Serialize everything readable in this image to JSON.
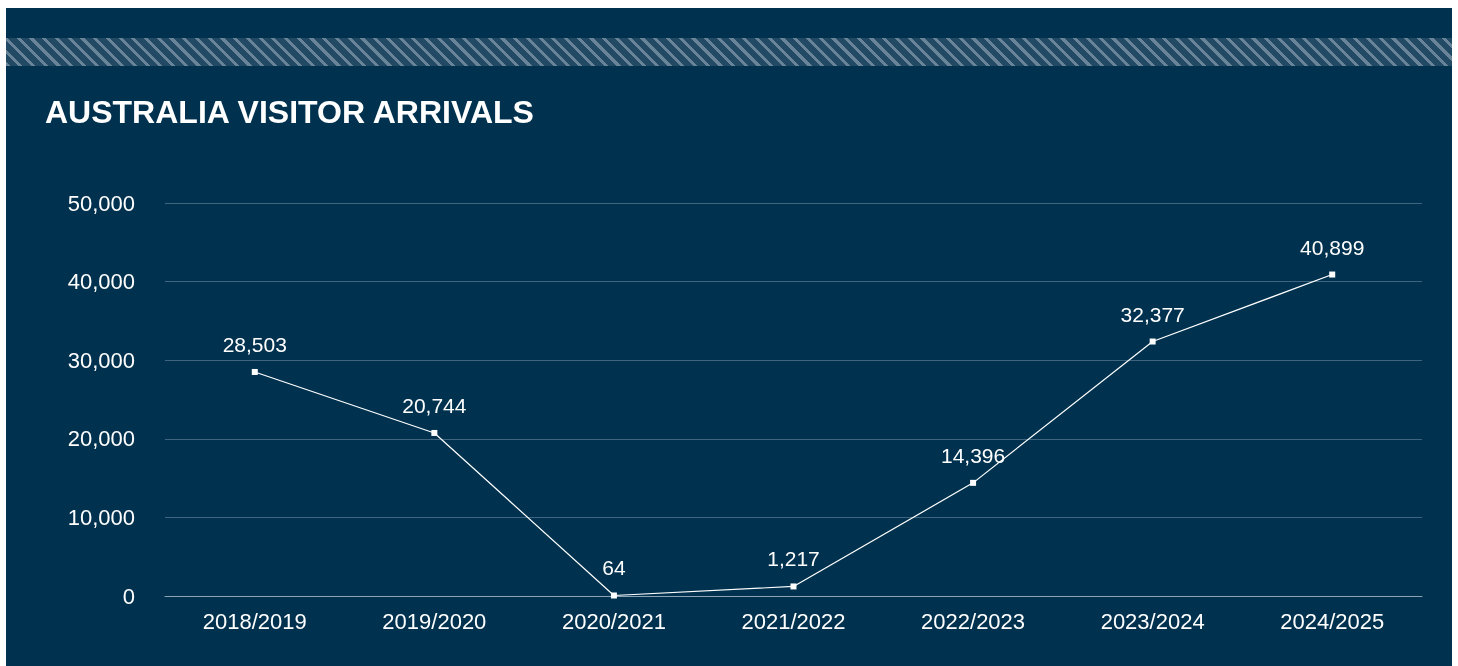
{
  "chart_data": {
    "type": "line",
    "title": "AUSTRALIA VISITOR ARRIVALS",
    "categories": [
      "2018/2019",
      "2019/2020",
      "2020/2021",
      "2021/2022",
      "2022/2023",
      "2023/2024",
      "2024/2025"
    ],
    "series": [
      {
        "color": "#ffffff",
        "values": [
          28503,
          20744,
          64,
          1217,
          14396,
          32377,
          40899
        ],
        "value_labels": [
          "28,503",
          "20,744",
          "64",
          "1,217",
          "14,396",
          "32,377",
          "40,899"
        ]
      }
    ],
    "ylim": [
      0,
      50000
    ],
    "yticks": [
      0,
      {
        "value": 10000,
        "label": "10,000"
      },
      {
        "value": 20000,
        "label": "20,000"
      },
      {
        "value": 30000,
        "label": "30,000"
      },
      {
        "value": 40000,
        "label": "40,000"
      },
      {
        "value": 50000,
        "label": "50,000"
      }
    ],
    "grid": "y",
    "marker": "square",
    "line_style": "solid"
  }
}
